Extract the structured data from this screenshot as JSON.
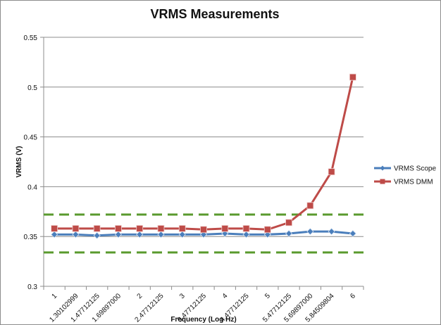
{
  "chart_data": {
    "type": "line",
    "title": "VRMS Measurements",
    "xlabel": "Frequency (Log Hz)",
    "ylabel": "VRMS (V)",
    "categories": [
      "1",
      "1.30102999",
      "1.47712125",
      "1.69897000",
      "2",
      "2.47712125",
      "3",
      "3.47712125",
      "4",
      "4.47712125",
      "5",
      "5.47712125",
      "5.69897000",
      "5.84509804",
      "6"
    ],
    "ylim": [
      0.3,
      0.55
    ],
    "yticks": [
      "0.3",
      "0.35",
      "0.4",
      "0.45",
      "0.5",
      "0.55"
    ],
    "yticks_values": [
      0.3,
      0.35,
      0.4,
      0.45,
      0.5,
      0.55
    ],
    "grid": true,
    "legend": "right",
    "series": [
      {
        "name": "VRMS Scope",
        "color": "#4a7ebb",
        "marker": "diamond",
        "values": [
          0.352,
          0.352,
          0.351,
          0.352,
          0.352,
          0.352,
          0.352,
          0.352,
          0.353,
          0.352,
          0.352,
          0.353,
          0.355,
          0.355,
          0.353
        ]
      },
      {
        "name": "VRMS DMM",
        "color": "#be4b48",
        "marker": "square",
        "values": [
          0.358,
          0.358,
          0.358,
          0.358,
          0.358,
          0.358,
          0.358,
          0.357,
          0.358,
          0.358,
          0.357,
          0.364,
          0.381,
          0.415,
          0.51
        ]
      }
    ],
    "reference_lines": [
      {
        "value": 0.372,
        "color": "#5a9a2e",
        "style": "dashed"
      },
      {
        "value": 0.334,
        "color": "#5a9a2e",
        "style": "dashed"
      }
    ]
  }
}
